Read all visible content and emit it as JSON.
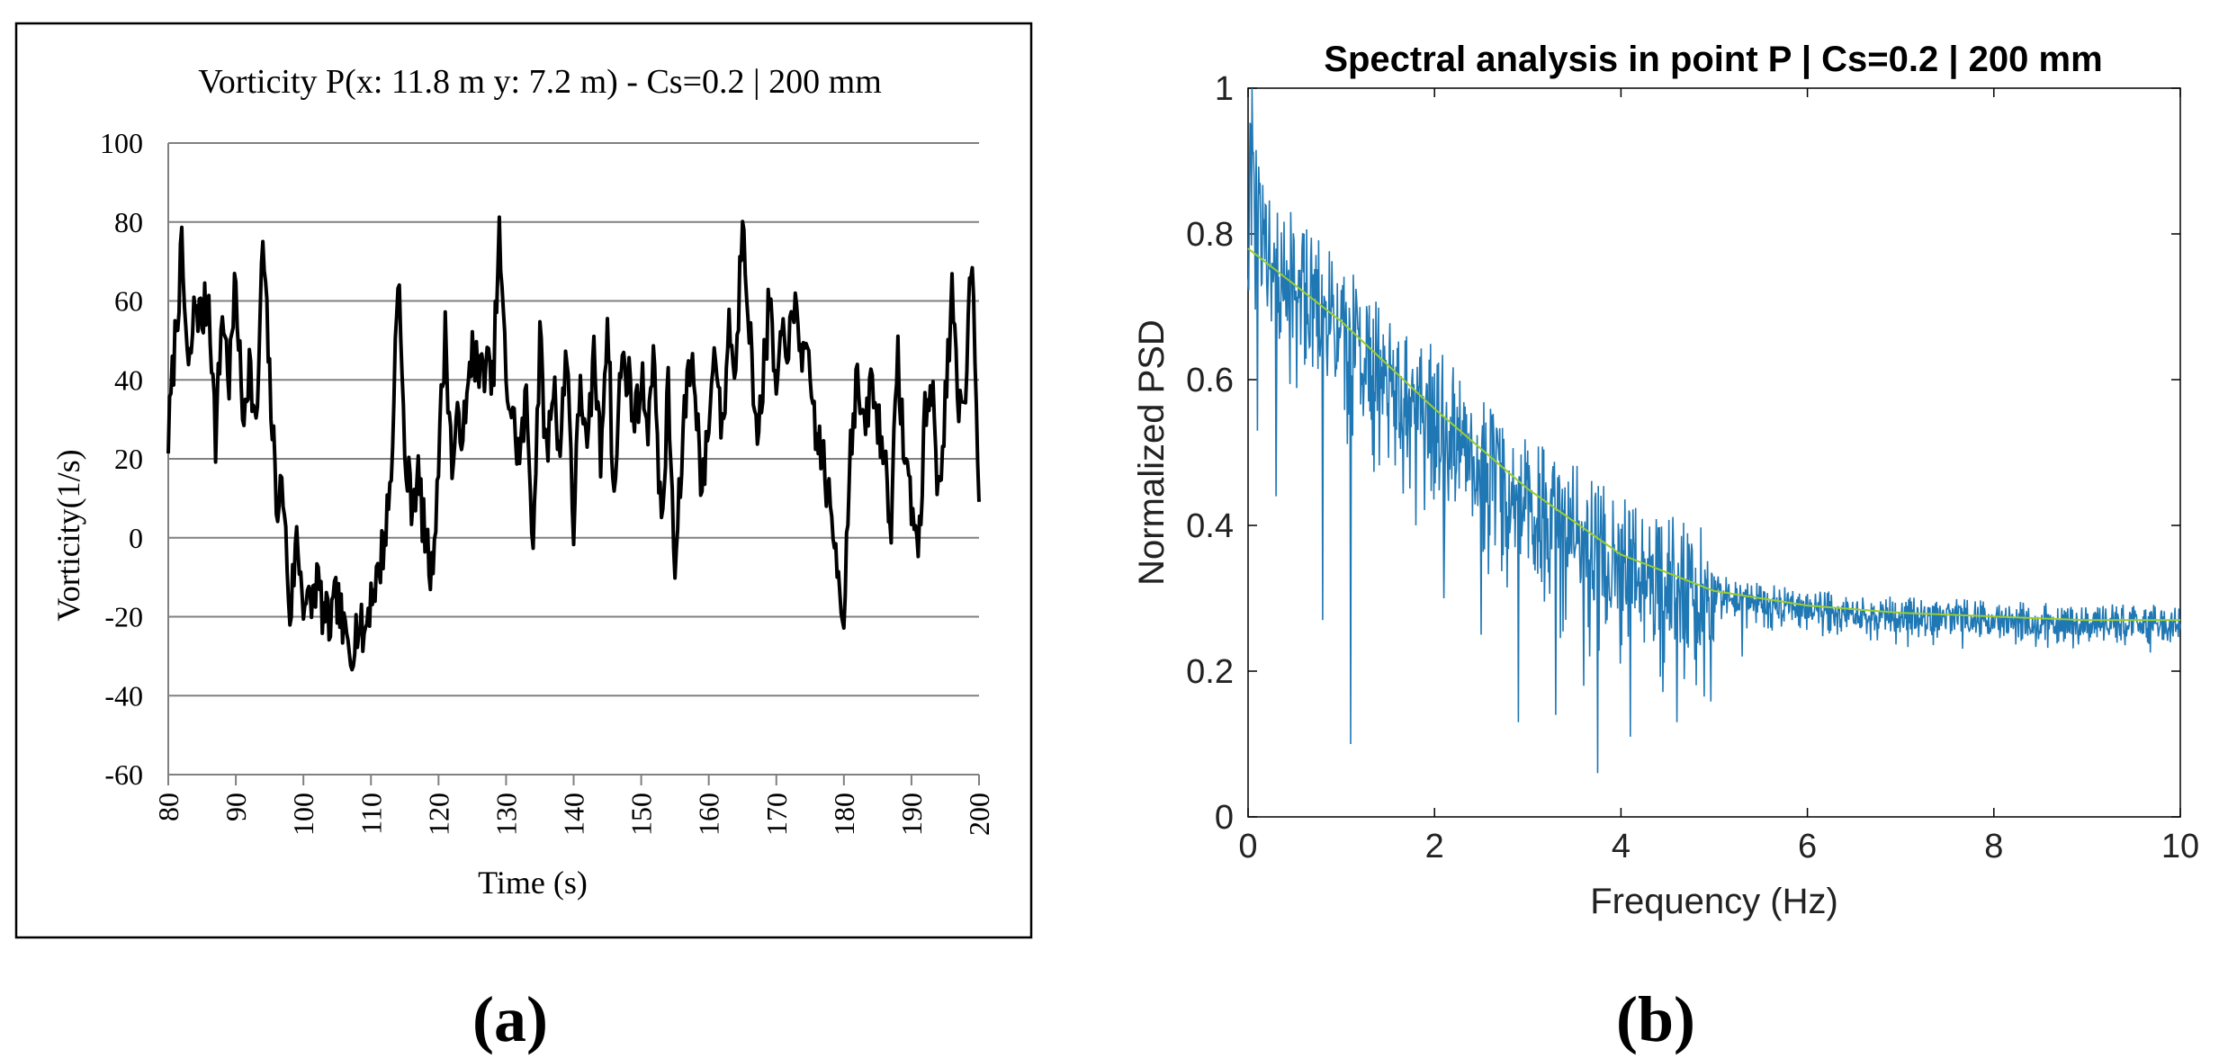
{
  "chart_data": [
    {
      "panel_label": "(a)",
      "type": "line",
      "title": "Vorticity P(x: 11.8 m y: 7.2 m) - Cs=0.2 | 200 mm",
      "xlabel": "Time (s)",
      "ylabel": "Vorticity(1/s)",
      "xlim": [
        80,
        200
      ],
      "ylim": [
        -60,
        100
      ],
      "xticks": [
        80,
        90,
        100,
        110,
        120,
        130,
        140,
        150,
        160,
        170,
        180,
        190,
        200
      ],
      "yticks": [
        100,
        80,
        60,
        40,
        20,
        0,
        -20,
        -40,
        -60
      ],
      "grid": "horizontal",
      "series": [
        {
          "name": "Vorticity",
          "color": "#000000",
          "x": [
            80,
            81,
            82,
            83,
            84,
            85,
            86,
            87,
            88,
            89,
            90,
            91,
            92,
            93,
            94,
            95,
            96,
            97,
            98,
            99,
            100,
            101,
            102,
            103,
            104,
            105,
            106,
            107,
            108,
            109,
            110,
            111,
            112,
            113,
            114,
            115,
            116,
            117,
            118,
            119,
            120,
            121,
            122,
            123,
            124,
            125,
            126,
            127,
            128,
            129,
            130,
            131,
            132,
            133,
            134,
            135,
            136,
            137,
            138,
            139,
            140,
            141,
            142,
            143,
            144,
            145,
            146,
            147,
            148,
            149,
            150,
            151,
            152,
            153,
            154,
            155,
            156,
            157,
            158,
            159,
            160,
            161,
            162,
            163,
            164,
            165,
            166,
            167,
            168,
            169,
            170,
            171,
            172,
            173,
            174,
            175,
            176,
            177,
            178,
            179,
            180,
            181,
            182,
            183,
            184,
            185,
            186,
            187,
            188,
            189,
            190,
            191,
            192,
            193,
            194,
            195,
            196,
            197,
            198,
            199,
            200
          ],
          "y": [
            25,
            50,
            72,
            40,
            60,
            55,
            62,
            25,
            58,
            40,
            65,
            30,
            45,
            25,
            75,
            40,
            10,
            12,
            -20,
            0,
            -15,
            -18,
            -10,
            -20,
            -22,
            -15,
            -25,
            -28,
            -22,
            -25,
            -14,
            -10,
            0,
            15,
            70,
            20,
            10,
            15,
            0,
            -10,
            20,
            52,
            18,
            30,
            28,
            50,
            40,
            45,
            38,
            76,
            40,
            30,
            20,
            35,
            0,
            50,
            20,
            40,
            22,
            50,
            2,
            42,
            18,
            48,
            20,
            58,
            8,
            45,
            42,
            30,
            40,
            30,
            45,
            0,
            38,
            -10,
            20,
            45,
            40,
            10,
            30,
            50,
            25,
            55,
            40,
            85,
            55,
            25,
            40,
            60,
            35,
            52,
            50,
            58,
            45,
            40,
            25,
            20,
            5,
            -5,
            -20,
            25,
            40,
            25,
            40,
            30,
            20,
            5,
            45,
            20,
            10,
            -5,
            30,
            40,
            10,
            35,
            60,
            30,
            40,
            75,
            12
          ]
        }
      ]
    },
    {
      "panel_label": "(b)",
      "type": "line",
      "title": "Spectral analysis in point P | Cs=0.2 | 200 mm",
      "xlabel": "Frequency (Hz)",
      "ylabel": "Normalized PSD",
      "xlim": [
        0,
        10
      ],
      "ylim": [
        0,
        1
      ],
      "xticks": [
        0,
        2,
        4,
        6,
        8,
        10
      ],
      "yticks": [
        0,
        0.2,
        0.4,
        0.6,
        0.8,
        1
      ],
      "grid": "off",
      "series": [
        {
          "name": "PSD",
          "color": "#1f77b4",
          "envelope": {
            "x": [
              0,
              0.02,
              0.05,
              0.1,
              0.2,
              0.3,
              0.4,
              0.5,
              0.75,
              1.0,
              1.5,
              2.0,
              2.5,
              3.0,
              3.5,
              4.0,
              4.5,
              5.0,
              5.5,
              6.0,
              7.0,
              8.0,
              9.0,
              10.0
            ],
            "y": [
              0.78,
              0.98,
              0.9,
              0.82,
              0.8,
              0.78,
              0.76,
              0.74,
              0.71,
              0.68,
              0.62,
              0.56,
              0.5,
              0.45,
              0.4,
              0.36,
              0.33,
              0.31,
              0.3,
              0.29,
              0.28,
              0.275,
              0.27,
              0.27
            ]
          },
          "dips": [
            {
              "x": 0.1,
              "y": 0.53
            },
            {
              "x": 0.3,
              "y": 0.44
            },
            {
              "x": 0.8,
              "y": 0.27
            },
            {
              "x": 1.1,
              "y": 0.1
            },
            {
              "x": 1.8,
              "y": 0.4
            },
            {
              "x": 2.1,
              "y": 0.3
            },
            {
              "x": 2.5,
              "y": 0.25
            },
            {
              "x": 2.9,
              "y": 0.13
            },
            {
              "x": 3.3,
              "y": 0.14
            },
            {
              "x": 3.6,
              "y": 0.18
            },
            {
              "x": 3.75,
              "y": 0.06
            },
            {
              "x": 4.1,
              "y": 0.11
            },
            {
              "x": 4.6,
              "y": 0.13
            },
            {
              "x": 5.3,
              "y": 0.22
            }
          ]
        },
        {
          "name": "Fit",
          "color": "#9acd32",
          "x": [
            0,
            1,
            2,
            3,
            4,
            5,
            6,
            7,
            8,
            9,
            10
          ],
          "y": [
            0.78,
            0.68,
            0.56,
            0.45,
            0.36,
            0.31,
            0.29,
            0.28,
            0.275,
            0.27,
            0.27
          ]
        }
      ]
    }
  ]
}
